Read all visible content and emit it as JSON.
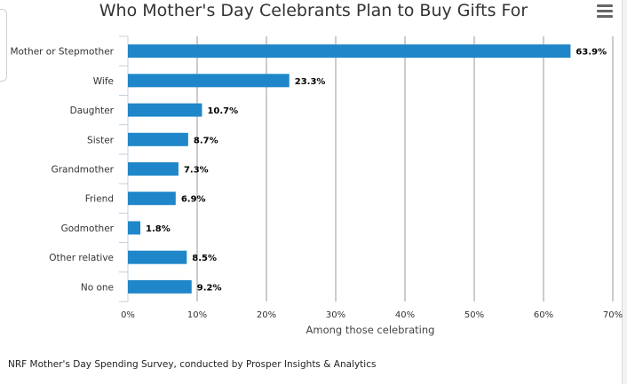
{
  "title": "Who Mother's Day Celebrants Plan to Buy Gifts For",
  "menu_icon": "hamburger-menu-icon",
  "source": "NRF Mother's Day Spending Survey, conducted by Prosper Insights & Analytics",
  "colors": {
    "bar": "#1f86c9",
    "grid": "#9a9a9a"
  },
  "chart_data": {
    "type": "bar",
    "orientation": "horizontal",
    "title": "Who Mother's Day Celebrants Plan to Buy Gifts For",
    "categories": [
      "Mother or Stepmother",
      "Wife",
      "Daughter",
      "Sister",
      "Grandmother",
      "Friend",
      "Godmother",
      "Other relative",
      "No one"
    ],
    "values": [
      63.9,
      23.3,
      10.7,
      8.7,
      7.3,
      6.9,
      1.8,
      8.5,
      9.2
    ],
    "data_labels": [
      "63.9%",
      "23.3%",
      "10.7%",
      "8.7%",
      "7.3%",
      "6.9%",
      "1.8%",
      "8.5%",
      "9.2%"
    ],
    "xlim": [
      0,
      70
    ],
    "ticks": [
      0,
      10,
      20,
      30,
      40,
      50,
      60,
      70
    ],
    "tick_labels": [
      "0%",
      "10%",
      "20%",
      "30%",
      "40%",
      "50%",
      "60%",
      "70%"
    ],
    "xlabel": "Among those celebrating",
    "ylabel": "",
    "grid": true,
    "legend": "none"
  }
}
